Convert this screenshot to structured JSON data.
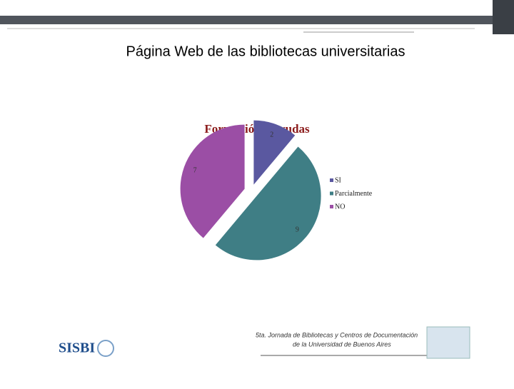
{
  "slide": {
    "title": "Página Web de las bibliotecas universitarias",
    "logo": "SISBI",
    "footer_line1": "5ta. Jornada de Bibliotecas y Centros de Documentación",
    "footer_line2": "de la Universidad de Buenos Aires"
  },
  "chart_data": {
    "type": "pie",
    "title": "Formación y ayudas",
    "categories": [
      "SI",
      "Parcialmente",
      "NO"
    ],
    "values": [
      2,
      9,
      7
    ],
    "colors": [
      "#5a58a0",
      "#3f7e85",
      "#9b4ea5"
    ],
    "legend": "right"
  }
}
